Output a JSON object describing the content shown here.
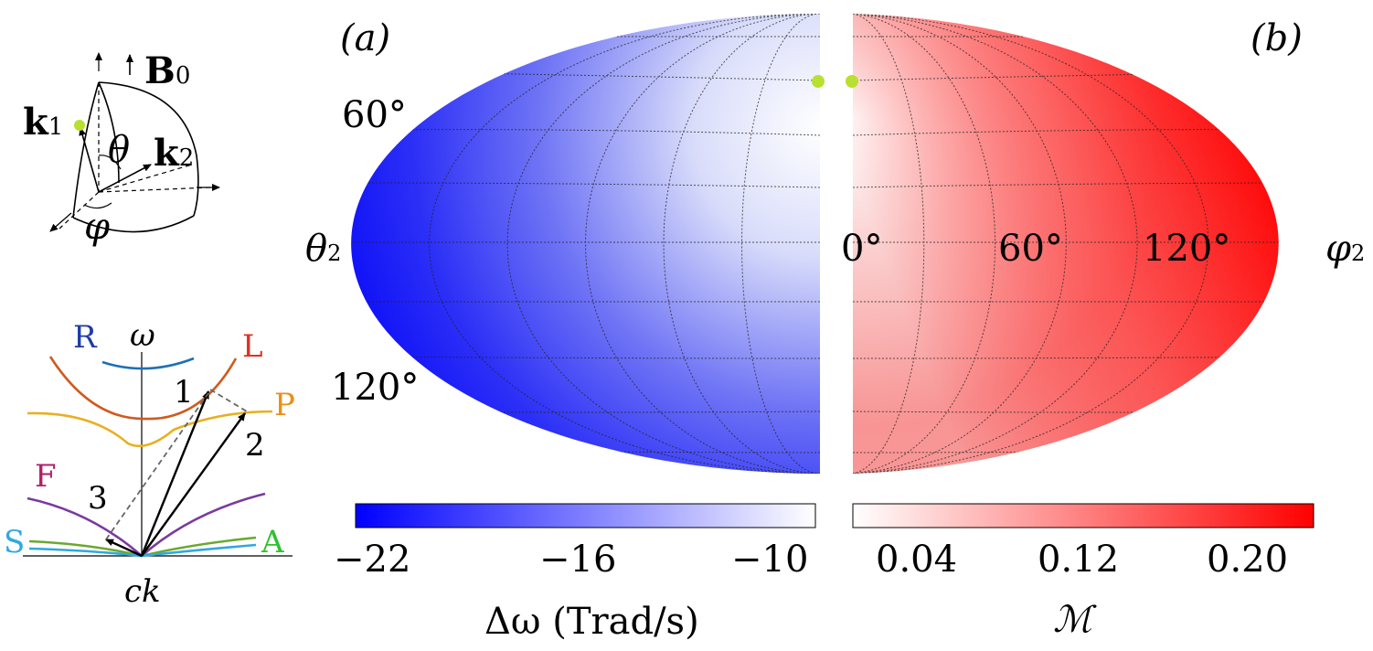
{
  "geometry_sketch": {
    "b0_label": "B",
    "b0_sub": "0",
    "k1_label": "k",
    "k1_sub": "1",
    "k2_label": "k",
    "k2_sub": "2",
    "theta_label": "θ",
    "phi_label": "φ"
  },
  "dispersion": {
    "y_label": "ω",
    "x_label": "ck",
    "branches": [
      {
        "name": "R",
        "color": "#1f6fb5"
      },
      {
        "name": "L",
        "color": "#e03020"
      },
      {
        "name": "P",
        "color": "#e8a020"
      },
      {
        "name": "F",
        "color": "#b0206a"
      },
      {
        "name": "S",
        "color": "#30a8e0"
      },
      {
        "name": "A",
        "color": "#30c030"
      }
    ],
    "wave_labels": [
      "1",
      "2",
      "3"
    ]
  },
  "panel_a": {
    "tag": "(a)",
    "axis_label": "θ",
    "axis_sub": "2",
    "theta_ticks": [
      "60°",
      "120°"
    ],
    "colorbar": {
      "ticks": [
        "−22",
        "−16",
        "−10"
      ],
      "label": "Δω (Trad/s)",
      "color_min": "#0000ff",
      "color_max": "#ffffff"
    }
  },
  "panel_b": {
    "tag": "(b)",
    "axis_label": "φ",
    "axis_sub": "2",
    "phi_ticks": [
      "0°",
      "60°",
      "120°"
    ],
    "colorbar": {
      "ticks": [
        "0.04",
        "0.12",
        "0.20"
      ],
      "label": "ℳ",
      "color_min": "#ffffff",
      "color_max": "#ff0000"
    }
  },
  "marker_color": "#b8e030"
}
